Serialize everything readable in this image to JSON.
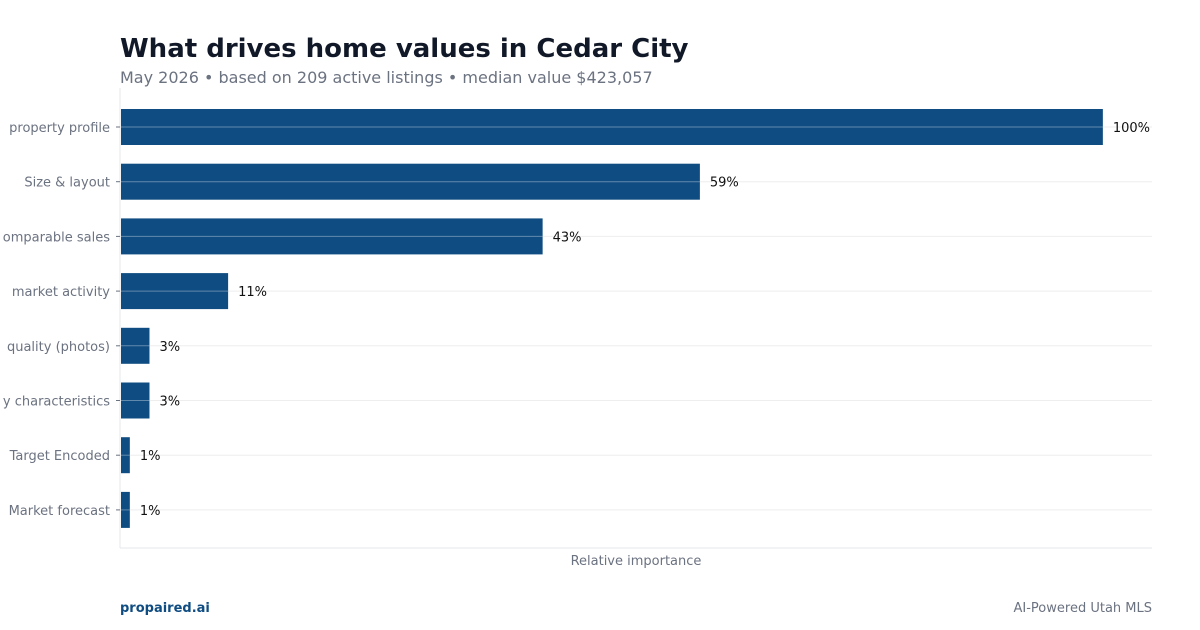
{
  "header": {
    "title": "What drives home values in Cedar City",
    "subtitle": "May 2026 • based on 209 active listings • median value $423,057"
  },
  "footer": {
    "brand": "propaired.ai",
    "tagline": "AI-Powered Utah MLS"
  },
  "colors": {
    "bar": "#0f4c81",
    "gridline": "#eeeeee",
    "tick_label": "#6b7280",
    "value_label": "#111111",
    "axis_frame": "#e5e7eb"
  },
  "chart_data": {
    "type": "bar",
    "orientation": "horizontal",
    "categories": [
      "property profile",
      "Size & layout",
      "omparable sales",
      "market activity",
      "quality (photos)",
      "y characteristics",
      "Target Encoded",
      "Market forecast"
    ],
    "values": [
      100,
      59,
      43,
      11,
      3,
      3,
      1,
      1
    ],
    "value_labels": [
      "100%",
      "59%",
      "43%",
      "11%",
      "3%",
      "3%",
      "1%",
      "1%"
    ],
    "xlabel": "Relative importance",
    "xlim": [
      0,
      105
    ],
    "grid": true,
    "legend": "none"
  }
}
